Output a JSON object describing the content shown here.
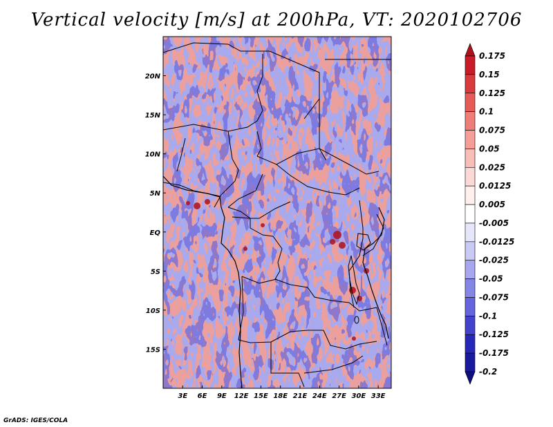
{
  "title": "Vertical velocity [m/s] at 200hPa, VT: 2020102706",
  "credit": "GrADS: IGES/COLA",
  "map": {
    "lon_range": [
      0,
      35
    ],
    "lat_range": [
      -20,
      25
    ],
    "lon_ticks": [
      "3E",
      "6E",
      "9E",
      "12E",
      "15E",
      "18E",
      "21E",
      "24E",
      "27E",
      "30E",
      "33E"
    ],
    "lat_ticks": [
      "20N",
      "15N",
      "10N",
      "5N",
      "EQ",
      "5S",
      "10S",
      "15S"
    ]
  },
  "colorbar": {
    "labels": [
      "0.175",
      "0.15",
      "0.125",
      "0.1",
      "0.075",
      "0.05",
      "0.025",
      "0.0125",
      "0.005",
      "-0.005",
      "-0.0125",
      "-0.025",
      "-0.05",
      "-0.075",
      "-0.1",
      "-0.125",
      "-0.175",
      "-0.2"
    ],
    "colors": [
      "#b0101a",
      "#c81c28",
      "#d83a3e",
      "#e65a58",
      "#ef7d78",
      "#f59e98",
      "#f9bdb8",
      "#fcd9d6",
      "#fff0ee",
      "#ffffff",
      "#e6e6fb",
      "#c9c9f5",
      "#a7a7ef",
      "#8585e6",
      "#6464dc",
      "#4242cc",
      "#2828b8",
      "#1a1a9e",
      "#0f0f80"
    ]
  }
}
